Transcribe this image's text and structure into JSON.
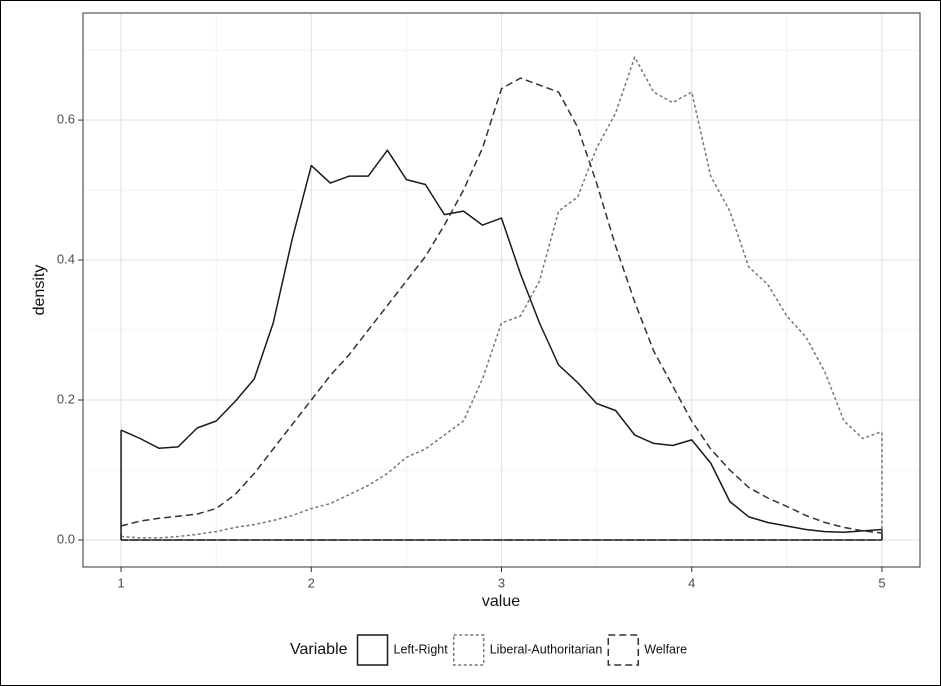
{
  "chart_data": {
    "type": "line",
    "x_label": "value",
    "y_label": "density",
    "legend_title": "Variable",
    "legend_position": "bottom",
    "grid": true,
    "xlim": [
      0.8,
      5.2
    ],
    "ylim": [
      -0.0386,
      0.753
    ],
    "xticks": [
      1,
      2,
      3,
      4,
      5
    ],
    "xminor": [
      1.5,
      2.5,
      3.5,
      4.5
    ],
    "yticks": [
      {
        "value": 0,
        "label": "0.0"
      },
      0.2,
      0.4,
      0.6
    ],
    "yminor": [
      0.1,
      0.3,
      0.5,
      0.7
    ],
    "x": [
      1.0,
      1.1,
      1.2,
      1.3,
      1.4,
      1.5,
      1.6,
      1.7,
      1.8,
      1.9,
      2.0,
      2.1,
      2.2,
      2.3,
      2.4,
      2.5,
      2.6,
      2.7,
      2.8,
      2.9,
      3.0,
      3.1,
      3.2,
      3.3,
      3.4,
      3.5,
      3.6,
      3.7,
      3.8,
      3.9,
      4.0,
      4.1,
      4.2,
      4.3,
      4.4,
      4.5,
      4.6,
      4.7,
      4.8,
      4.9,
      5.0
    ],
    "series": [
      {
        "name": "Left-Right",
        "color": "#1a1a1a",
        "linestyle": "solid",
        "values": [
          0.157,
          0.145,
          0.131,
          0.133,
          0.16,
          0.17,
          0.198,
          0.23,
          0.31,
          0.43,
          0.535,
          0.51,
          0.52,
          0.52,
          0.557,
          0.515,
          0.508,
          0.465,
          0.47,
          0.45,
          0.46,
          0.38,
          0.31,
          0.25,
          0.225,
          0.195,
          0.185,
          0.15,
          0.138,
          0.135,
          0.143,
          0.11,
          0.055,
          0.033,
          0.025,
          0.02,
          0.015,
          0.012,
          0.011,
          0.013,
          0.015
        ]
      },
      {
        "name": "Liberal-Authoritarian",
        "color": "#777777",
        "linestyle": "dotted",
        "values": [
          0.005,
          0.003,
          0.003,
          0.005,
          0.008,
          0.012,
          0.018,
          0.022,
          0.028,
          0.035,
          0.045,
          0.052,
          0.065,
          0.078,
          0.095,
          0.118,
          0.13,
          0.15,
          0.17,
          0.23,
          0.31,
          0.32,
          0.37,
          0.47,
          0.49,
          0.56,
          0.61,
          0.69,
          0.64,
          0.625,
          0.64,
          0.52,
          0.47,
          0.39,
          0.365,
          0.32,
          0.29,
          0.24,
          0.17,
          0.145,
          0.155
        ]
      },
      {
        "name": "Welfare",
        "color": "#333333",
        "linestyle": "dashed",
        "values": [
          0.02,
          0.027,
          0.031,
          0.034,
          0.037,
          0.045,
          0.065,
          0.095,
          0.13,
          0.165,
          0.2,
          0.235,
          0.265,
          0.3,
          0.335,
          0.37,
          0.405,
          0.45,
          0.5,
          0.56,
          0.645,
          0.66,
          0.65,
          0.64,
          0.59,
          0.51,
          0.42,
          0.34,
          0.27,
          0.22,
          0.17,
          0.13,
          0.1,
          0.075,
          0.06,
          0.048,
          0.035,
          0.025,
          0.018,
          0.013,
          0.01
        ]
      }
    ]
  }
}
